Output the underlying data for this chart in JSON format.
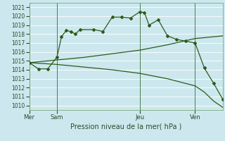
{
  "bg_color": "#cce8ee",
  "line_color": "#2d5a1b",
  "grid_color": "#ffffff",
  "title": "Pression niveau de la mer( hPa )",
  "ylim": [
    1009.5,
    1021.5
  ],
  "yticks": [
    1010,
    1011,
    1012,
    1013,
    1014,
    1015,
    1016,
    1017,
    1018,
    1019,
    1020,
    1021
  ],
  "day_labels": [
    "Mer",
    "Sam",
    "Jeu",
    "Ven"
  ],
  "day_positions": [
    0,
    6,
    24,
    36
  ],
  "vline_positions": [
    0,
    6,
    24,
    36
  ],
  "xlim": [
    0,
    42
  ],
  "series1_x": [
    0,
    2,
    4,
    6,
    7,
    8,
    9,
    10,
    11,
    14,
    16,
    18,
    20,
    22,
    24,
    25,
    26,
    28,
    30,
    32,
    34,
    36,
    38,
    40,
    42
  ],
  "series1_y": [
    1014.8,
    1014.1,
    1014.1,
    1015.4,
    1017.7,
    1018.4,
    1018.3,
    1018.0,
    1018.5,
    1018.5,
    1018.3,
    1019.9,
    1019.9,
    1019.8,
    1020.5,
    1020.4,
    1019.0,
    1019.6,
    1017.8,
    1017.4,
    1017.2,
    1017.0,
    1014.2,
    1012.5,
    1010.7
  ],
  "series2_x": [
    0,
    6,
    12,
    18,
    24,
    30,
    36,
    42
  ],
  "series2_y": [
    1014.8,
    1015.1,
    1015.4,
    1015.8,
    1016.2,
    1016.8,
    1017.5,
    1017.8
  ],
  "series3_x": [
    0,
    6,
    12,
    18,
    24,
    30,
    36,
    38,
    40,
    42
  ],
  "series3_y": [
    1014.8,
    1014.6,
    1014.3,
    1014.0,
    1013.6,
    1013.0,
    1012.2,
    1011.5,
    1010.5,
    1009.8
  ],
  "ytick_fontsize": 5.5,
  "xtick_fontsize": 6.0,
  "xlabel_fontsize": 7.0
}
